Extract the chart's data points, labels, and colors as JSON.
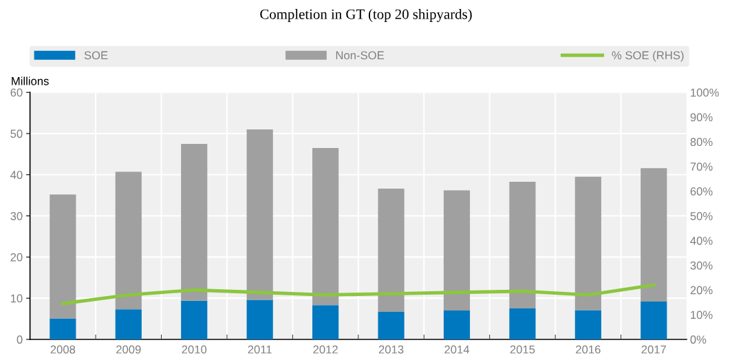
{
  "chart_data": {
    "type": "bar",
    "title": "Completion in GT (top 20 shipyards)",
    "ylabel": "Millions",
    "categories": [
      "2008",
      "2009",
      "2010",
      "2011",
      "2012",
      "2013",
      "2014",
      "2015",
      "2016",
      "2017"
    ],
    "stacked": true,
    "series": [
      {
        "name": "SOE",
        "color": "#0078bf",
        "values": [
          5.1,
          7.3,
          9.4,
          9.6,
          8.3,
          6.7,
          7.0,
          7.5,
          7.1,
          9.2
        ]
      },
      {
        "name": "Non-SOE",
        "color": "#a0a0a0",
        "values": [
          30.1,
          33.4,
          38.1,
          41.4,
          38.2,
          29.9,
          29.2,
          30.8,
          32.4,
          32.4
        ]
      },
      {
        "name": "% SOE (RHS)",
        "type": "line",
        "axis": "y2",
        "color": "#8cc63f",
        "values": [
          14.5,
          18,
          20,
          19,
          18,
          18.5,
          19,
          19.5,
          18,
          22
        ]
      }
    ],
    "ylim": [
      0,
      60
    ],
    "yticks": [
      0,
      10,
      20,
      30,
      40,
      50,
      60
    ],
    "y2lim": [
      0,
      100
    ],
    "y2ticks": [
      {
        "value": 0,
        "label": "0%"
      },
      {
        "value": 10,
        "label": "10%"
      },
      {
        "value": 20,
        "label": "20%"
      },
      {
        "value": 30,
        "label": "30%"
      },
      {
        "value": 40,
        "label": "40%"
      },
      {
        "value": 50,
        "label": "50%"
      },
      {
        "value": 60,
        "label": "60%"
      },
      {
        "value": 70,
        "label": "70%"
      },
      {
        "value": 80,
        "label": "80%"
      },
      {
        "value": 90,
        "label": "90%"
      },
      {
        "value": 100,
        "label": "100%"
      }
    ],
    "grid": true,
    "legend": "top",
    "marker": "none",
    "line_style": "solid"
  }
}
